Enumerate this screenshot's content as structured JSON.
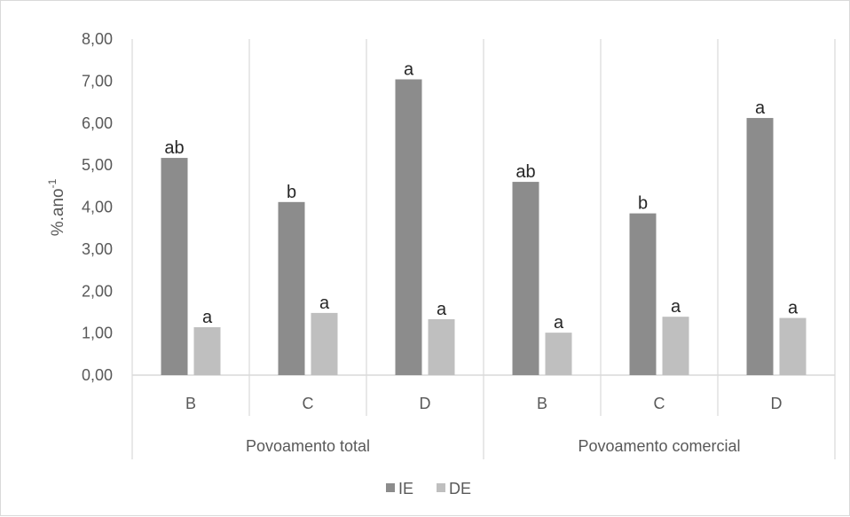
{
  "chart_data": {
    "type": "bar",
    "ylabel": "%.ano",
    "ylabel_sup": "-1",
    "ylim": [
      0,
      8
    ],
    "y_ticks": [
      "0,00",
      "1,00",
      "2,00",
      "3,00",
      "4,00",
      "5,00",
      "6,00",
      "7,00",
      "8,00"
    ],
    "groups": [
      {
        "label": "Povoamento total",
        "categories": [
          "B",
          "C",
          "D"
        ]
      },
      {
        "label": "Povoamento comercial",
        "categories": [
          "B",
          "C",
          "D"
        ]
      }
    ],
    "categories": [
      "B",
      "C",
      "D",
      "B",
      "C",
      "D"
    ],
    "series": [
      {
        "name": "IE",
        "color": "#8c8c8c",
        "values": [
          5.17,
          4.12,
          7.04,
          4.6,
          3.85,
          6.12
        ],
        "labels": [
          "ab",
          "b",
          "a",
          "ab",
          "b",
          "a"
        ]
      },
      {
        "name": "DE",
        "color": "#bfbfbf",
        "values": [
          1.14,
          1.48,
          1.33,
          1.01,
          1.39,
          1.36
        ],
        "labels": [
          "a",
          "a",
          "a",
          "a",
          "a",
          "a"
        ]
      }
    ],
    "grid": false,
    "legend_position": "bottom"
  }
}
